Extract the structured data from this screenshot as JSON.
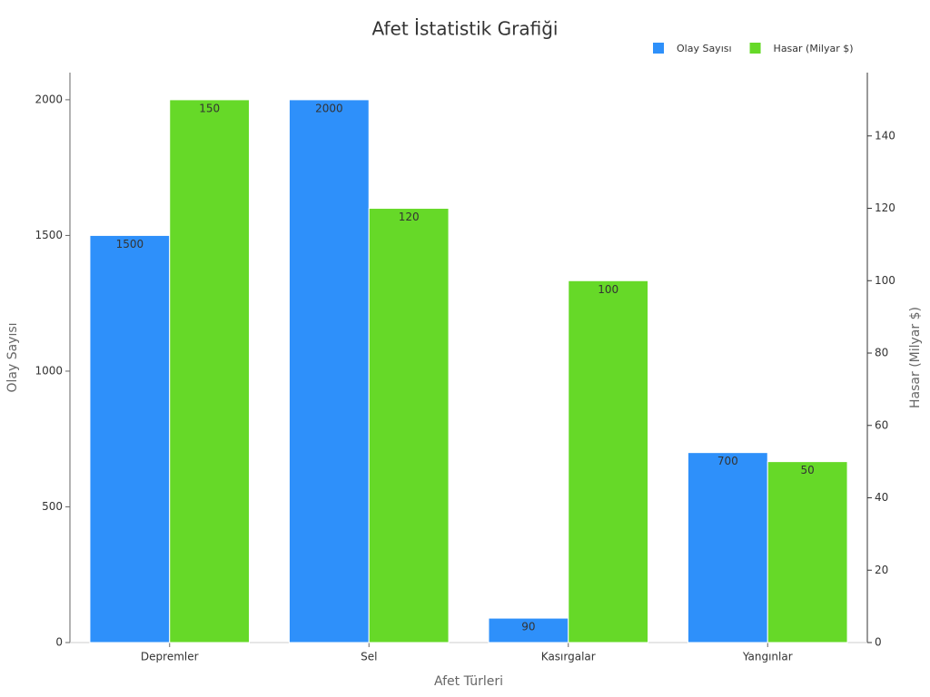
{
  "chart_data": {
    "type": "bar",
    "title": "Afet İstatistik Grafiği",
    "x_label": "Afet Türleri",
    "y_label": "Olay Sayısı",
    "y2_label": "Hasar (Milyar $)",
    "categories": [
      "Depremler",
      "Sel",
      "Kasırgalar",
      "Yangınlar"
    ],
    "series": [
      {
        "name": "Olay Sayısı",
        "color": "#2e90fa",
        "values": [
          1500,
          2000,
          90,
          700
        ]
      },
      {
        "name": "Hasar (Milyar $)",
        "color": "#66d928",
        "axis": "y2",
        "values": [
          150,
          120,
          100,
          50
        ]
      }
    ],
    "ylim": [
      0,
      2100
    ],
    "yticks": [
      0,
      500,
      1000,
      1500,
      2000
    ],
    "y2lim": [
      0,
      157.5
    ],
    "y2ticks": [
      0,
      20,
      40,
      60,
      80,
      100,
      120,
      140
    ],
    "legend": "top-right"
  }
}
